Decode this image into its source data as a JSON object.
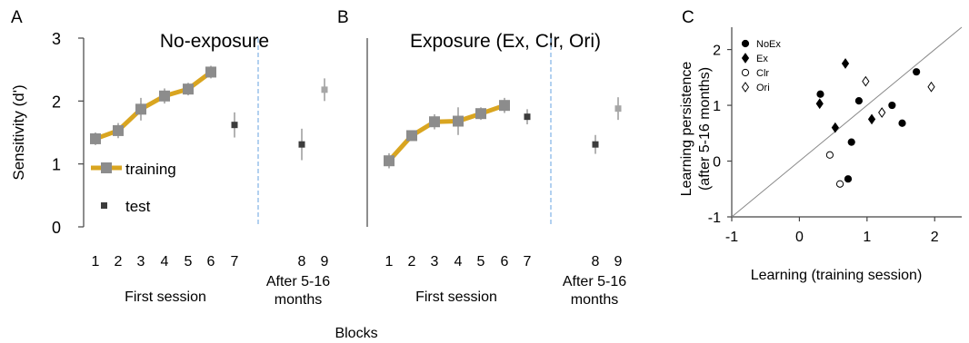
{
  "figure": {
    "shared_xlabel": "Blocks",
    "group_label_first": "First session",
    "group_label_after": "After 5-16\nmonths"
  },
  "colors": {
    "training_line": "#d9a520",
    "training_marker": "#8c8c8c",
    "test_gray": "#a6a6a6",
    "test_dark": "#3c3c3c",
    "errorbar": "#b3b3b3",
    "divider": "#7fb2e6",
    "axis": "#444444",
    "diagonal": "#888888"
  },
  "chart_data": [
    {
      "type": "line",
      "panel_label": "A",
      "title": "No-exposure",
      "ylabel": "Sensitivity (d')",
      "xlabel": "",
      "ylim": [
        0,
        3
      ],
      "yticks": [
        0,
        1,
        2,
        3
      ],
      "xticks": [
        1,
        2,
        3,
        4,
        5,
        6,
        7,
        8,
        9
      ],
      "legend": {
        "placement": "left",
        "entries": [
          "training",
          "test"
        ]
      },
      "training": {
        "name": "training",
        "x": [
          1,
          2,
          3,
          4,
          5,
          6
        ],
        "y": [
          1.4,
          1.53,
          1.87,
          2.08,
          2.19,
          2.46
        ],
        "err": [
          0.1,
          0.12,
          0.18,
          0.12,
          0.1,
          0.1
        ]
      },
      "test": {
        "name": "test",
        "x": [
          7,
          8,
          9
        ],
        "y": [
          1.62,
          1.31,
          2.18
        ],
        "err": [
          0.2,
          0.25,
          0.18
        ],
        "shade": [
          "dark",
          "dark",
          "gray"
        ]
      }
    },
    {
      "type": "line",
      "panel_label": "B",
      "title": "Exposure (Ex, Clr, Ori)",
      "ylabel": "",
      "xlabel": "",
      "ylim": [
        0,
        3
      ],
      "xticks": [
        1,
        2,
        3,
        4,
        5,
        6,
        7,
        8,
        9
      ],
      "training": {
        "name": "training",
        "x": [
          1,
          2,
          3,
          4,
          5,
          6
        ],
        "y": [
          1.05,
          1.45,
          1.67,
          1.68,
          1.8,
          1.93
        ],
        "err": [
          0.12,
          0.08,
          0.12,
          0.22,
          0.1,
          0.12
        ]
      },
      "test": {
        "name": "test",
        "x": [
          7,
          8,
          9
        ],
        "y": [
          1.75,
          1.31,
          1.88
        ],
        "err": [
          0.12,
          0.15,
          0.18
        ],
        "shade": [
          "dark",
          "dark",
          "gray"
        ]
      }
    },
    {
      "type": "scatter",
      "panel_label": "C",
      "xlabel": "Learning (training session)",
      "ylabel": "Learning persistence\n(after 5-16 months)",
      "xlim": [
        -1,
        2.4
      ],
      "ylim": [
        -1,
        2.4
      ],
      "xticks": [
        -1,
        0,
        1,
        2
      ],
      "yticks": [
        -1,
        0,
        1,
        2
      ],
      "diagonal": true,
      "legend": {
        "placement": "top-left",
        "entries": [
          "NoEx",
          "Ex",
          "Clr",
          "Ori"
        ]
      },
      "series": [
        {
          "name": "NoEx",
          "marker": "filled-circle",
          "points": [
            [
              0.31,
              1.2
            ],
            [
              0.88,
              1.08
            ],
            [
              0.77,
              0.34
            ],
            [
              0.72,
              -0.32
            ],
            [
              1.37,
              1.0
            ],
            [
              1.52,
              0.68
            ],
            [
              1.73,
              1.6
            ]
          ]
        },
        {
          "name": "Ex",
          "marker": "filled-diamond",
          "points": [
            [
              0.3,
              1.03
            ],
            [
              0.53,
              0.6
            ],
            [
              0.68,
              1.75
            ],
            [
              1.07,
              0.75
            ]
          ]
        },
        {
          "name": "Clr",
          "marker": "open-circle",
          "points": [
            [
              0.45,
              0.11
            ],
            [
              0.6,
              -0.41
            ]
          ]
        },
        {
          "name": "Ori",
          "marker": "open-diamond",
          "points": [
            [
              0.98,
              1.43
            ],
            [
              1.22,
              0.87
            ],
            [
              1.95,
              1.33
            ]
          ]
        }
      ]
    }
  ]
}
